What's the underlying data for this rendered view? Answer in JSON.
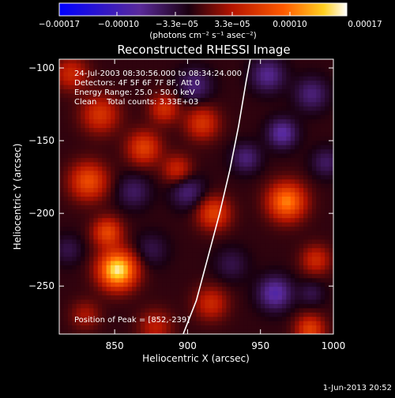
{
  "chart_data": {
    "type": "heatmap",
    "title": "Reconstructed RHESSI Image",
    "xlabel": "Heliocentric X (arcsec)",
    "ylabel": "Heliocentric Y (arcsec)",
    "xlim": [
      812,
      1000
    ],
    "ylim": [
      -283,
      -94
    ],
    "x_ticks": [
      850,
      900,
      950,
      1000
    ],
    "x_tick_labels": [
      "850",
      "900",
      "950",
      "1000"
    ],
    "y_ticks": [
      -100,
      -150,
      -200,
      -250
    ],
    "y_tick_labels": [
      "−100",
      "−150",
      "−200",
      "−250"
    ],
    "colorbar": {
      "range": [
        -0.00017,
        0.00017
      ],
      "tick_labels": [
        "−0.00017",
        "−0.00010",
        "−3.3e−05",
        "3.3e−05",
        "0.00010",
        "0.00017"
      ],
      "unit_label": "(photons cm⁻² s⁻¹ asec⁻²)",
      "colors": [
        "#0000ff",
        "#5a2a9a",
        "#1a0010",
        "#b41400",
        "#ff5a00",
        "#ffd020",
        "#ffffff"
      ]
    },
    "annotations": [
      "24-Jul-2003 08:30:56.000 to 08:34:24.000",
      "Detectors: 4F 5F 6F 7F 8F, Att 0",
      "Energy Range: 25.0 - 50.0 keV",
      "Clean    Total counts: 3.33E+03"
    ],
    "peak_label": "Position of Peak = [852,-239]",
    "peak": [
      852,
      -239
    ],
    "limb": {
      "color": "#ffffff",
      "points": [
        [
          897,
          -283
        ],
        [
          906,
          -260
        ],
        [
          914,
          -230
        ],
        [
          922,
          -200
        ],
        [
          929,
          -170
        ],
        [
          935,
          -140
        ],
        [
          940,
          -110
        ],
        [
          943,
          -94
        ]
      ]
    },
    "sources": [
      {
        "x": 852,
        "y": -239,
        "v": 0.00017,
        "s": 9
      },
      {
        "x": 845,
        "y": -213,
        "v": 8.5e-05,
        "s": 7
      },
      {
        "x": 820,
        "y": -104,
        "v": 6e-05,
        "s": 8
      },
      {
        "x": 840,
        "y": -132,
        "v": 7e-05,
        "s": 9
      },
      {
        "x": 832,
        "y": -178,
        "v": 9e-05,
        "s": 9
      },
      {
        "x": 870,
        "y": -155,
        "v": 8e-05,
        "s": 8
      },
      {
        "x": 884,
        "y": -128,
        "v": 6.5e-05,
        "s": 7
      },
      {
        "x": 893,
        "y": -170,
        "v": 6e-05,
        "s": 7
      },
      {
        "x": 910,
        "y": -138,
        "v": 7e-05,
        "s": 8
      },
      {
        "x": 918,
        "y": -200,
        "v": 8e-05,
        "s": 8
      },
      {
        "x": 916,
        "y": -262,
        "v": 6e-05,
        "s": 8
      },
      {
        "x": 968,
        "y": -192,
        "v": 0.00012,
        "s": 9
      },
      {
        "x": 988,
        "y": -232,
        "v": 6e-05,
        "s": 7
      },
      {
        "x": 984,
        "y": -280,
        "v": 8e-05,
        "s": 7
      },
      {
        "x": 878,
        "y": -278,
        "v": 5e-05,
        "s": 8
      },
      {
        "x": 830,
        "y": -270,
        "v": 4e-05,
        "s": 7
      },
      {
        "x": 863,
        "y": -185,
        "v": -4e-05,
        "s": 8
      },
      {
        "x": 900,
        "y": -185,
        "v": -5e-05,
        "s": 8
      },
      {
        "x": 875,
        "y": -225,
        "v": -3e-05,
        "s": 8
      },
      {
        "x": 905,
        "y": -112,
        "v": -5e-05,
        "s": 8
      },
      {
        "x": 955,
        "y": -105,
        "v": -6e-05,
        "s": 8
      },
      {
        "x": 985,
        "y": -118,
        "v": -5e-05,
        "s": 8
      },
      {
        "x": 965,
        "y": -145,
        "v": -7e-05,
        "s": 7
      },
      {
        "x": 995,
        "y": -165,
        "v": -4e-05,
        "s": 7
      },
      {
        "x": 960,
        "y": -255,
        "v": -7.5e-05,
        "s": 8
      },
      {
        "x": 930,
        "y": -235,
        "v": -3e-05,
        "s": 8
      },
      {
        "x": 985,
        "y": -255,
        "v": -3e-05,
        "s": 6
      },
      {
        "x": 940,
        "y": -162,
        "v": -5e-05,
        "s": 7
      },
      {
        "x": 818,
        "y": -225,
        "v": -3e-05,
        "s": 7
      }
    ]
  },
  "footer": {
    "date": "1-Jun-2013 20:52"
  }
}
